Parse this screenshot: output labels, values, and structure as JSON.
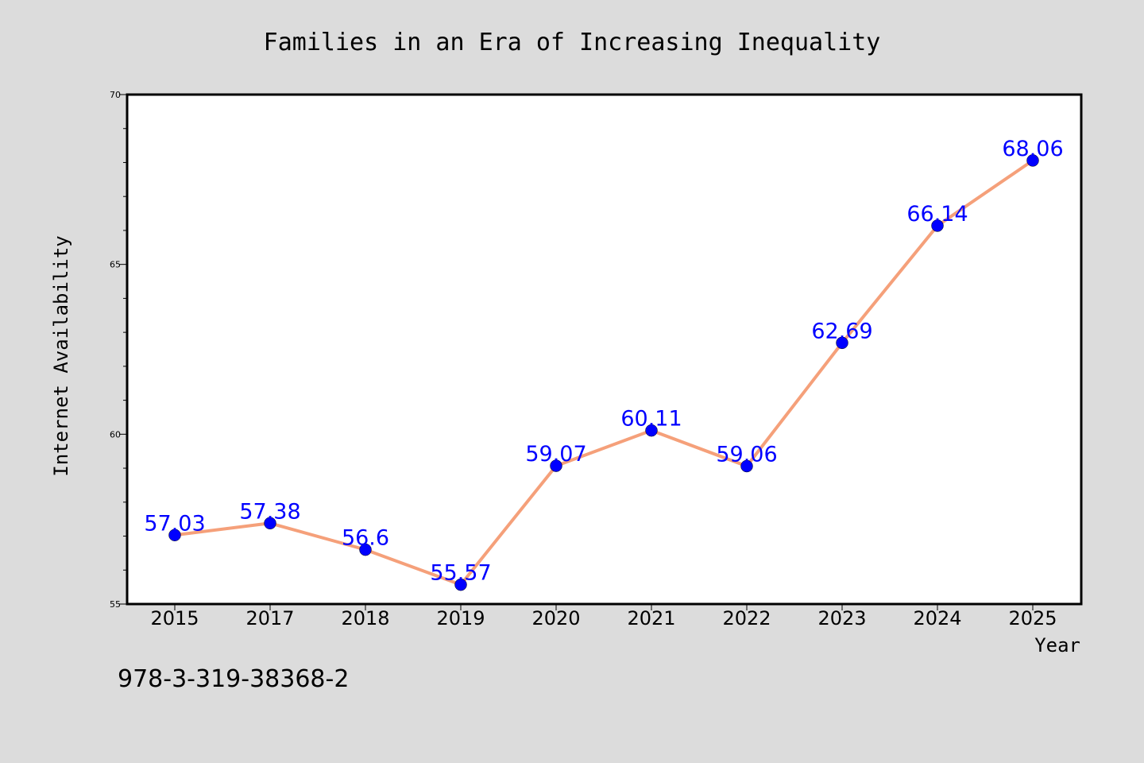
{
  "chart_data": {
    "type": "line",
    "title": "Families in an Era of Increasing Inequality",
    "xlabel": "Year",
    "ylabel": "Internet Availability",
    "categories": [
      "2015",
      "2017",
      "2018",
      "2019",
      "2020",
      "2021",
      "2022",
      "2023",
      "2024",
      "2025"
    ],
    "series": [
      {
        "values": [
          57.03,
          57.38,
          56.6,
          55.57,
          59.07,
          60.11,
          59.06,
          62.69,
          66.14,
          68.06
        ],
        "labels": [
          "57.03",
          "57.38",
          "56.6",
          "55.57",
          "59.07",
          "60.11",
          "59.06",
          "62.69",
          "66.14",
          "68.06"
        ]
      }
    ],
    "ylim": [
      55,
      70
    ],
    "yticks": [
      "55",
      "60",
      "65",
      "70"
    ],
    "grid": false,
    "legend": "none"
  },
  "footnote": "978-3-319-38368-2",
  "colors": {
    "background": "#dcdcdc",
    "plot_area": "#ffffff",
    "line": "#f5a07a",
    "marker": "#0000ff",
    "data_label": "#0000ff"
  }
}
